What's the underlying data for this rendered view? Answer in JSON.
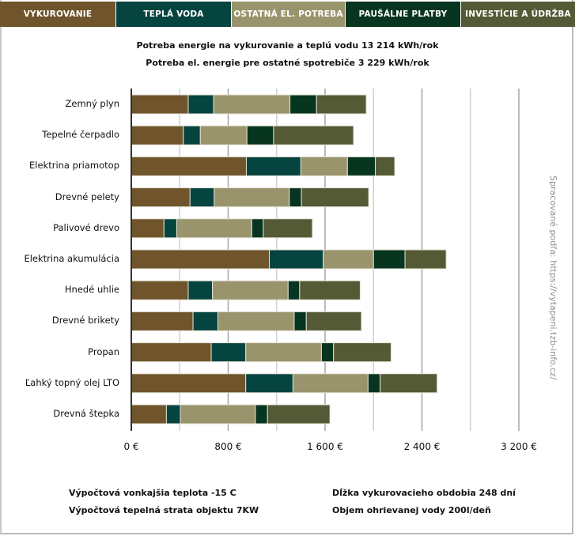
{
  "chart_data": {
    "type": "bar",
    "orientation": "horizontal",
    "stacked": true,
    "title_lines": [
      "Potreba energie na vykurovanie a teplú vodu 13 214 kWh/rok",
      "Potreba el. energie pre ostatné spotrebiče 3 229 kWh/rok"
    ],
    "xlabel": "",
    "ylabel": "",
    "xlim": [
      0,
      3600
    ],
    "xticks": [
      0,
      800,
      1600,
      2400,
      3200
    ],
    "xtick_labels": [
      "0 €",
      "800 €",
      "1 600 €",
      "2 400 €",
      "3 200 €"
    ],
    "grid_step": 400,
    "grid": true,
    "legend_position": "top",
    "categories": [
      "Zemný plyn",
      "Tepelné čerpadlo",
      "Elektrina priamotop",
      "Drevné pelety",
      "Palivové drevo",
      "Elektrina akumulácia",
      "Hnedé uhlie",
      "Drevné brikety",
      "Propan",
      "Ľahký topný olej LTO",
      "Drevná štepka"
    ],
    "series": [
      {
        "name": "VYKUROVANIE",
        "color": "#6f542c",
        "values": [
          470,
          430,
          950,
          485,
          270,
          1140,
          470,
          510,
          660,
          945,
          290
        ]
      },
      {
        "name": "TEPLÁ VODA",
        "color": "#064440",
        "values": [
          210,
          140,
          450,
          200,
          105,
          445,
          200,
          205,
          285,
          390,
          115
        ]
      },
      {
        "name": "OSTATNÁ EL. POTREBA",
        "color": "#9a946d",
        "values": [
          630,
          385,
          385,
          620,
          620,
          415,
          625,
          630,
          625,
          620,
          620
        ]
      },
      {
        "name": "PAUŠÁLNE PLATBY",
        "color": "#083520",
        "values": [
          220,
          220,
          230,
          100,
          95,
          260,
          95,
          100,
          100,
          100,
          100
        ]
      },
      {
        "name": "INVESTÍCIE A ÚDRŽBA",
        "color": "#545a35",
        "values": [
          410,
          660,
          160,
          555,
          405,
          340,
          500,
          455,
          475,
          470,
          515
        ]
      }
    ]
  },
  "footnotes": {
    "left": [
      "Výpočtová vonkajšia teplota -15 C",
      "Výpočtová tepelná strata objektu 7KW"
    ],
    "right": [
      "Dĺžka vykurovacieho obdobia 248 dní",
      "Objem ohrievanej vody 200l/deň"
    ]
  },
  "source_note": "Spracované podľa: https://vytapeni.tzb-info.cz/"
}
